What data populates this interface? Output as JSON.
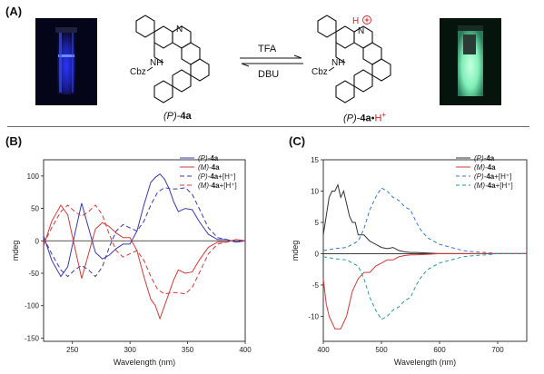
{
  "panels": {
    "a": "(A)",
    "b": "(B)",
    "c": "(C)"
  },
  "scheme": {
    "left_label_pre": "(P)-",
    "left_label_bold": "4a",
    "right_label_pre": "(P)-",
    "right_label_bold": "4a",
    "right_label_dot": "•",
    "right_label_h": "H",
    "right_label_plus": "+",
    "forward_reagent": "TFA",
    "reverse_reagent": "DBU",
    "left_nh": "NH",
    "left_cbz": "Cbz",
    "left_n": "N",
    "right_nh": "NH",
    "right_cbz": "Cbz",
    "right_n": "N",
    "right_h": "H",
    "colors": {
      "left_glow": "#3a4dff",
      "right_glow": "#9cf7c8",
      "cation": "#cc1f1f"
    }
  },
  "chart_data": [
    {
      "type": "line",
      "panel": "(B)",
      "xlabel": "Wavelength (nm)",
      "ylabel": "mdeg",
      "xlim": [
        225,
        400
      ],
      "ylim": [
        -155,
        125
      ],
      "xticks": [
        250,
        300,
        350,
        400
      ],
      "yticks": [
        100,
        50,
        0,
        -50,
        -100,
        -150
      ],
      "legend_placement": "top-right",
      "series": [
        {
          "name_pre": "(P)-",
          "name_bold": "4a",
          "name_post": "",
          "color": "#3a3aa8",
          "dash": "",
          "x": [
            225,
            232,
            240,
            246,
            252,
            258,
            264,
            270,
            276,
            282,
            288,
            294,
            300,
            306,
            312,
            318,
            322,
            326,
            330,
            334,
            338,
            342,
            348,
            354,
            360,
            368,
            376,
            384,
            392,
            400
          ],
          "y": [
            8,
            -30,
            -55,
            -40,
            10,
            58,
            20,
            -18,
            -28,
            -22,
            -12,
            -5,
            -5,
            15,
            55,
            90,
            98,
            103,
            95,
            80,
            60,
            45,
            50,
            48,
            30,
            10,
            2,
            2,
            -2,
            0
          ]
        },
        {
          "name_pre": "(M)-",
          "name_bold": "4a",
          "name_post": "",
          "color": "#d23a3a",
          "dash": "",
          "x": [
            225,
            232,
            240,
            246,
            252,
            258,
            264,
            270,
            276,
            282,
            288,
            294,
            300,
            306,
            312,
            318,
            322,
            326,
            330,
            334,
            338,
            342,
            348,
            354,
            360,
            368,
            376,
            384,
            392,
            400
          ],
          "y": [
            -8,
            30,
            55,
            40,
            -10,
            -58,
            -20,
            18,
            28,
            22,
            12,
            5,
            5,
            -15,
            -55,
            -90,
            -100,
            -120,
            -100,
            -80,
            -60,
            -45,
            -50,
            -48,
            -30,
            -10,
            -2,
            -2,
            2,
            0
          ]
        },
        {
          "name_pre": "(P)-",
          "name_bold": "4a",
          "name_post": "+[H⁺]",
          "color": "#3a3aa8",
          "dash": "5,3",
          "x": [
            225,
            232,
            240,
            246,
            252,
            258,
            264,
            270,
            276,
            282,
            288,
            294,
            300,
            306,
            312,
            318,
            324,
            330,
            336,
            342,
            348,
            354,
            360,
            368,
            376,
            384,
            392,
            400
          ],
          "y": [
            5,
            -20,
            -45,
            -55,
            -45,
            -38,
            -45,
            -55,
            -40,
            -10,
            15,
            25,
            20,
            15,
            30,
            55,
            75,
            82,
            80,
            80,
            82,
            72,
            50,
            20,
            5,
            2,
            -2,
            0
          ]
        },
        {
          "name_pre": "(M)-",
          "name_bold": "4a",
          "name_post": "+[H⁺]",
          "color": "#d23a3a",
          "dash": "5,3",
          "x": [
            225,
            232,
            240,
            246,
            252,
            258,
            264,
            270,
            276,
            282,
            288,
            294,
            300,
            306,
            312,
            318,
            324,
            330,
            336,
            342,
            348,
            354,
            360,
            368,
            376,
            384,
            392,
            400
          ],
          "y": [
            -5,
            20,
            45,
            55,
            45,
            38,
            45,
            55,
            40,
            10,
            -15,
            -25,
            -20,
            -15,
            -30,
            -55,
            -75,
            -82,
            -80,
            -80,
            -82,
            -72,
            -50,
            -20,
            -5,
            -2,
            2,
            0
          ]
        }
      ]
    },
    {
      "type": "line",
      "panel": "(C)",
      "xlabel": "Wavelength (nm)",
      "ylabel": "mdeg",
      "xlim": [
        400,
        750
      ],
      "ylim": [
        -14,
        15
      ],
      "xticks": [
        400,
        500,
        600,
        700
      ],
      "yticks": [
        15,
        10,
        5,
        0,
        -5,
        -10
      ],
      "legend_placement": "top-right",
      "series": [
        {
          "name_pre": "(P)-",
          "name_bold": "4a",
          "name_post": "",
          "color": "#333333",
          "dash": "",
          "x": [
            400,
            405,
            410,
            415,
            420,
            425,
            430,
            435,
            440,
            445,
            450,
            455,
            460,
            470,
            480,
            490,
            500,
            510,
            520,
            530,
            540,
            550,
            560,
            580,
            600,
            620,
            650,
            680,
            720,
            750
          ],
          "y": [
            3,
            6,
            9,
            10,
            10,
            11,
            9,
            10,
            8,
            6,
            5,
            5,
            3,
            3,
            2,
            1.5,
            1,
            0.8,
            1,
            0.5,
            0.3,
            0.2,
            0.2,
            0.1,
            0,
            0,
            0,
            0,
            0,
            0
          ]
        },
        {
          "name_pre": "(M)-",
          "name_bold": "4a",
          "name_post": "",
          "color": "#d23a3a",
          "dash": "",
          "x": [
            400,
            405,
            410,
            415,
            420,
            425,
            430,
            435,
            440,
            445,
            450,
            455,
            460,
            470,
            480,
            490,
            500,
            510,
            520,
            530,
            540,
            550,
            560,
            580,
            600,
            620,
            650,
            680,
            720,
            750
          ],
          "y": [
            -4,
            -8,
            -10,
            -11,
            -12,
            -12,
            -12,
            -11,
            -10,
            -8,
            -6,
            -5,
            -4,
            -3,
            -3,
            -2,
            -1.5,
            -1,
            -1,
            -0.5,
            -0.3,
            -0.2,
            -0.2,
            -0.1,
            0,
            0,
            0,
            0,
            0,
            0
          ]
        },
        {
          "name_pre": "(P)-",
          "name_bold": "4a",
          "name_post": "+[H⁺]",
          "color": "#3a78c8",
          "dash": "4,3",
          "x": [
            400,
            420,
            440,
            460,
            470,
            480,
            490,
            500,
            510,
            520,
            530,
            540,
            550,
            560,
            570,
            580,
            590,
            600,
            620,
            640,
            660,
            680,
            700,
            720,
            750
          ],
          "y": [
            0.5,
            0.8,
            1,
            2,
            4,
            7,
            9,
            10.5,
            10,
            9,
            8.5,
            7.5,
            7,
            5,
            3.5,
            2.5,
            2,
            1.5,
            1,
            0.5,
            0.3,
            0.2,
            0,
            0,
            0
          ]
        },
        {
          "name_pre": "(M)-",
          "name_bold": "4a",
          "name_post": "+[H⁺]",
          "color": "#2a9a8a",
          "dash": "4,3",
          "x": [
            400,
            420,
            440,
            460,
            470,
            480,
            490,
            500,
            510,
            520,
            530,
            540,
            550,
            560,
            570,
            580,
            590,
            600,
            620,
            640,
            660,
            680,
            700,
            720,
            750
          ],
          "y": [
            -0.5,
            -0.8,
            -1,
            -2,
            -4,
            -7,
            -9,
            -10.5,
            -10,
            -9,
            -8.5,
            -7.5,
            -7,
            -5,
            -3.5,
            -2.5,
            -2,
            -1.5,
            -1,
            -0.5,
            -0.3,
            -0.2,
            0,
            0,
            0
          ]
        }
      ]
    }
  ]
}
